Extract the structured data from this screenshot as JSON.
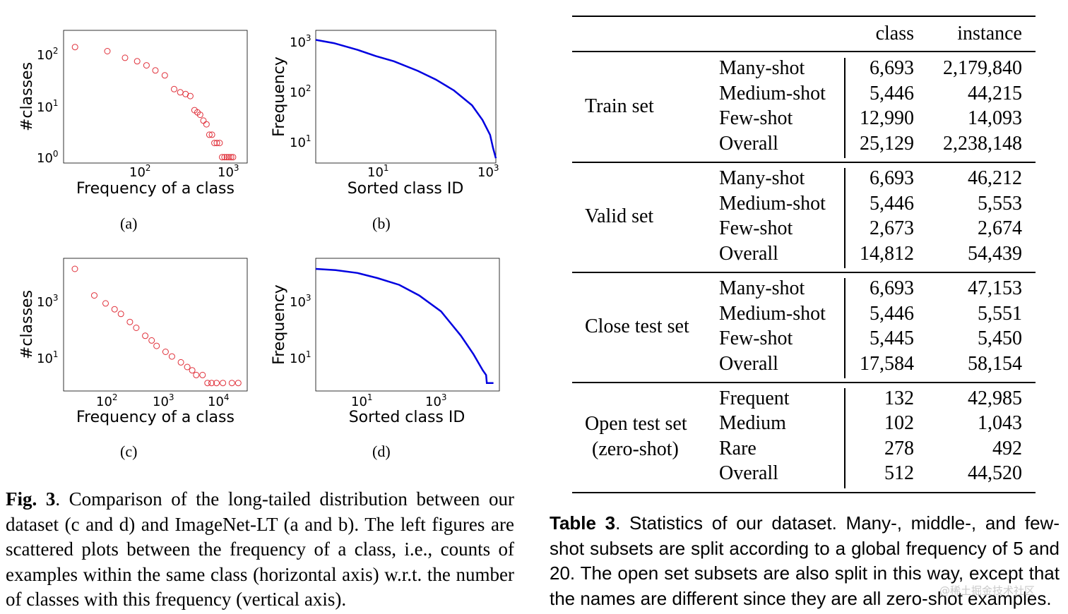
{
  "figure": {
    "subplots": [
      {
        "id": "a",
        "label": "(a)",
        "xlabel": "Frequency of a class",
        "ylabel": "#classes",
        "xticks": [
          "10",
          "10"
        ],
        "xexps": [
          "2",
          "3"
        ],
        "yticks": [
          "10",
          "10",
          "10"
        ],
        "yexps": [
          "2",
          "1",
          "0"
        ]
      },
      {
        "id": "b",
        "label": "(b)",
        "xlabel": "Sorted class ID",
        "ylabel": "Frequency",
        "xticks": [
          "10",
          "10"
        ],
        "xexps": [
          "1",
          "3"
        ],
        "yticks": [
          "10",
          "10",
          "10"
        ],
        "yexps": [
          "3",
          "2",
          "1"
        ]
      },
      {
        "id": "c",
        "label": "(c)",
        "xlabel": "Frequency of a class",
        "ylabel": "#classes",
        "xticks": [
          "10",
          "10",
          "10"
        ],
        "xexps": [
          "2",
          "3",
          "4"
        ],
        "yticks": [
          "10",
          "10"
        ],
        "yexps": [
          "3",
          "1"
        ]
      },
      {
        "id": "d",
        "label": "(d)",
        "xlabel": "Sorted class ID",
        "ylabel": "Frequency",
        "xticks": [
          "10",
          "10"
        ],
        "xexps": [
          "1",
          "3"
        ],
        "yticks": [
          "10",
          "10"
        ],
        "yexps": [
          "3",
          "1"
        ]
      }
    ],
    "caption_label": "Fig. 3",
    "caption_text": ".  Comparison of the long-tailed distribution between our dataset (c and d) and ImageNet-LT (a and b). The left figures are scattered plots between the frequency of a class, i.e., counts of examples within the same class (horizontal axis) w.r.t. the number of classes with this frequency (vertical axis)."
  },
  "chart_data": [
    {
      "type": "scatter",
      "title": "(a)",
      "xlabel": "Frequency of a class",
      "ylabel": "#classes",
      "xscale": "log",
      "yscale": "log",
      "xlim": [
        15,
        1500
      ],
      "ylim": [
        0.75,
        500
      ],
      "color": "#e0303a",
      "x": [
        20,
        45,
        70,
        95,
        120,
        150,
        190,
        240,
        280,
        320,
        360,
        400,
        430,
        460,
        500,
        540,
        580,
        620,
        660,
        700,
        750,
        800,
        850,
        900,
        950,
        1000,
        1050
      ],
      "y": [
        220,
        180,
        130,
        110,
        90,
        70,
        55,
        28,
        24,
        22,
        20,
        10,
        9,
        8,
        6,
        5,
        3,
        3,
        2,
        2,
        2,
        1,
        1,
        1,
        1,
        1,
        1
      ]
    },
    {
      "type": "line",
      "title": "(b)",
      "xlabel": "Sorted class ID",
      "ylabel": "Frequency",
      "xscale": "log",
      "yscale": "log",
      "xlim": [
        1,
        1000
      ],
      "ylim": [
        4,
        2000
      ],
      "color": "#0000e0",
      "x": [
        1,
        2,
        5,
        10,
        20,
        50,
        100,
        200,
        400,
        600,
        800,
        900,
        1000
      ],
      "y": [
        1280,
        1100,
        800,
        600,
        470,
        300,
        200,
        120,
        60,
        30,
        15,
        8,
        5
      ]
    },
    {
      "type": "scatter",
      "title": "(c)",
      "xlabel": "Frequency of a class",
      "ylabel": "#classes",
      "xscale": "log",
      "yscale": "log",
      "xlim": [
        15,
        60000
      ],
      "ylim": [
        0.5,
        50000
      ],
      "color": "#e0303a",
      "x": [
        25,
        60,
        100,
        150,
        200,
        300,
        400,
        600,
        800,
        1000,
        1500,
        2000,
        3000,
        4000,
        5000,
        6000,
        8000,
        10000,
        12000,
        15000,
        20000,
        30000,
        40000
      ],
      "y": [
        20000,
        2000,
        1000,
        600,
        400,
        200,
        120,
        60,
        40,
        25,
        15,
        10,
        6,
        4,
        3,
        2,
        2,
        1,
        1,
        1,
        1,
        1,
        1
      ]
    },
    {
      "type": "line",
      "title": "(d)",
      "xlabel": "Sorted class ID",
      "ylabel": "Frequency",
      "xscale": "log",
      "yscale": "log",
      "xlim": [
        1,
        25000
      ],
      "ylim": [
        0.5,
        50000
      ],
      "color": "#0000e0",
      "x": [
        1,
        3,
        10,
        30,
        100,
        300,
        1000,
        3000,
        6000,
        10000,
        12000,
        12500,
        15000,
        18000
      ],
      "y": [
        20000,
        18000,
        14000,
        9000,
        5000,
        2000,
        500,
        60,
        12,
        3,
        2,
        1,
        1,
        1
      ]
    }
  ],
  "table": {
    "header": {
      "class": "class",
      "instance": "instance"
    },
    "groups": [
      {
        "name": "Train set",
        "name2": "",
        "rows": [
          {
            "label": "Many-shot",
            "class": "6,693",
            "instance": "2,179,840"
          },
          {
            "label": "Medium-shot",
            "class": "5,446",
            "instance": "44,215"
          },
          {
            "label": "Few-shot",
            "class": "12,990",
            "instance": "14,093"
          },
          {
            "label": "Overall",
            "class": "25,129",
            "instance": "2,238,148"
          }
        ]
      },
      {
        "name": "Valid set",
        "name2": "",
        "rows": [
          {
            "label": "Many-shot",
            "class": "6,693",
            "instance": "46,212"
          },
          {
            "label": "Medium-shot",
            "class": "5,446",
            "instance": "5,553"
          },
          {
            "label": "Few-shot",
            "class": "2,673",
            "instance": "2,674"
          },
          {
            "label": "Overall",
            "class": "14,812",
            "instance": "54,439"
          }
        ]
      },
      {
        "name": "Close test set",
        "name2": "",
        "rows": [
          {
            "label": "Many-shot",
            "class": "6,693",
            "instance": "47,153"
          },
          {
            "label": "Medium-shot",
            "class": "5,446",
            "instance": "5,551"
          },
          {
            "label": "Few-shot",
            "class": "5,445",
            "instance": "5,450"
          },
          {
            "label": "Overall",
            "class": "17,584",
            "instance": "58,154"
          }
        ]
      },
      {
        "name": "Open test set",
        "name2": "(zero-shot)",
        "rows": [
          {
            "label": "Frequent",
            "class": "132",
            "instance": "42,985"
          },
          {
            "label": "Medium",
            "class": "102",
            "instance": "1,043"
          },
          {
            "label": "Rare",
            "class": "278",
            "instance": "492"
          },
          {
            "label": "Overall",
            "class": "512",
            "instance": "44,520"
          }
        ]
      }
    ],
    "caption_label": "Table 3",
    "caption_text": ".  Statistics of our dataset.  Many-, middle-, and few-shot subsets are split according to a global frequency of 5 and 20. The open set subsets are also split in this way, except that the names are different since they are all zero-shot examples."
  },
  "watermark": "@稀土掘金技术社区"
}
